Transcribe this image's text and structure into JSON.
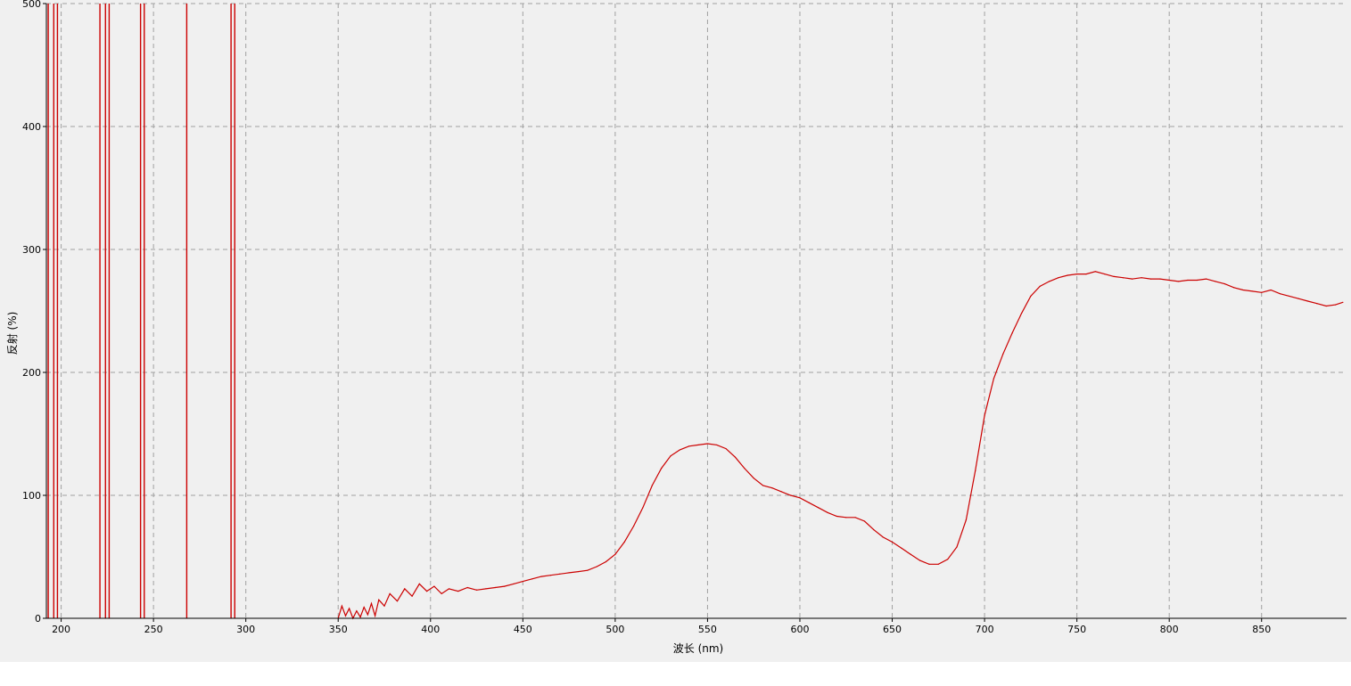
{
  "chart_data": {
    "type": "line",
    "title": "",
    "xlabel": "波长 (nm)",
    "ylabel": "反射 (%)",
    "xlim": [
      192,
      896
    ],
    "ylim": [
      0,
      500
    ],
    "x_ticks": [
      200,
      250,
      300,
      350,
      400,
      450,
      500,
      550,
      600,
      650,
      700,
      750,
      800,
      850
    ],
    "y_ticks": [
      0,
      100,
      200,
      300,
      400,
      500
    ],
    "grid": true,
    "legend": "none",
    "colors": {
      "line": "#cc0000",
      "background": "#f0f0f0",
      "grid": "#a0a0a0"
    },
    "series": [
      {
        "x": [
          350,
          352,
          354,
          356,
          358,
          360,
          362,
          364,
          366,
          368,
          370,
          372,
          375,
          378,
          382,
          386,
          390,
          394,
          398,
          402,
          406,
          410,
          415,
          420,
          425,
          430,
          435,
          440,
          445,
          450,
          455,
          460,
          465,
          470,
          475,
          480,
          485,
          490,
          495,
          500,
          505,
          510,
          515,
          520,
          525,
          530,
          535,
          540,
          545,
          550,
          555,
          560,
          565,
          570,
          575,
          580,
          585,
          590,
          595,
          600,
          605,
          610,
          615,
          620,
          625,
          630,
          635,
          640,
          645,
          650,
          655,
          660,
          665,
          670,
          675,
          680,
          685,
          690,
          695,
          700,
          705,
          710,
          715,
          720,
          725,
          730,
          735,
          740,
          745,
          750,
          755,
          760,
          765,
          770,
          775,
          780,
          785,
          790,
          795,
          800,
          805,
          810,
          815,
          820,
          825,
          830,
          835,
          840,
          845,
          850,
          855,
          860,
          865,
          870,
          875,
          880,
          885,
          890,
          894
        ],
        "y": [
          0,
          10,
          2,
          8,
          0,
          6,
          1,
          9,
          3,
          12,
          2,
          15,
          10,
          20,
          14,
          24,
          18,
          28,
          22,
          26,
          20,
          24,
          22,
          25,
          23,
          24,
          25,
          26,
          28,
          30,
          32,
          34,
          35,
          36,
          37,
          38,
          39,
          42,
          46,
          52,
          62,
          75,
          90,
          108,
          122,
          132,
          137,
          140,
          141,
          142,
          141,
          138,
          131,
          122,
          114,
          108,
          106,
          103,
          100,
          98,
          94,
          90,
          86,
          83,
          82,
          82,
          79,
          72,
          66,
          62,
          57,
          52,
          47,
          44,
          44,
          48,
          58,
          80,
          120,
          165,
          195,
          215,
          232,
          248,
          262,
          270,
          274,
          277,
          279,
          280,
          280,
          282,
          280,
          278,
          277,
          276,
          277,
          276,
          276,
          275,
          274,
          275,
          275,
          276,
          274,
          272,
          269,
          267,
          266,
          265,
          267,
          264,
          262,
          260,
          258,
          256,
          254,
          255,
          257
        ]
      }
    ],
    "spikes": [
      193,
      196,
      198,
      221,
      224,
      226,
      243,
      245,
      268,
      292,
      294
    ]
  }
}
